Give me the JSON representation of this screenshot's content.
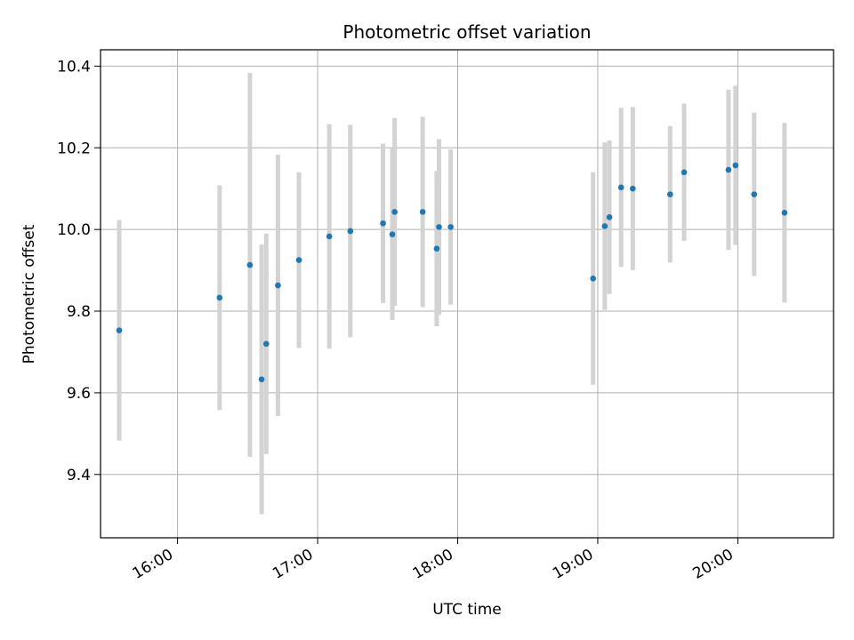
{
  "chart_data": {
    "type": "scatter",
    "title": "Photometric offset variation",
    "xlabel": "UTC time",
    "ylabel": "Photometric offset",
    "x_axis_type": "time",
    "xlim": [
      "15:27",
      "20:41"
    ],
    "ylim": [
      9.245,
      10.44
    ],
    "grid": true,
    "xticks": [
      "16:00",
      "17:00",
      "18:00",
      "19:00",
      "20:00"
    ],
    "yticks": [
      "9.4",
      "9.6",
      "9.8",
      "10.0",
      "10.2",
      "10.4"
    ],
    "point_color": "#1f77b4",
    "errorbar_color": "#d3d3d3",
    "points": [
      {
        "x": "15:35",
        "y": 9.753,
        "err": 0.27
      },
      {
        "x": "16:18",
        "y": 9.833,
        "err": 0.275
      },
      {
        "x": "16:31",
        "y": 9.913,
        "err": 0.47
      },
      {
        "x": "16:36",
        "y": 9.633,
        "err": 0.33
      },
      {
        "x": "16:38",
        "y": 9.72,
        "err": 0.27
      },
      {
        "x": "16:43",
        "y": 9.863,
        "err": 0.32
      },
      {
        "x": "16:52",
        "y": 9.925,
        "err": 0.215
      },
      {
        "x": "17:05",
        "y": 9.983,
        "err": 0.275
      },
      {
        "x": "17:14",
        "y": 9.996,
        "err": 0.26
      },
      {
        "x": "17:28",
        "y": 10.015,
        "err": 0.195
      },
      {
        "x": "17:32",
        "y": 9.988,
        "err": 0.21
      },
      {
        "x": "17:33",
        "y": 10.043,
        "err": 0.23
      },
      {
        "x": "17:45",
        "y": 10.043,
        "err": 0.233
      },
      {
        "x": "17:51",
        "y": 9.953,
        "err": 0.19
      },
      {
        "x": "17:52",
        "y": 10.006,
        "err": 0.215
      },
      {
        "x": "17:57",
        "y": 10.006,
        "err": 0.19
      },
      {
        "x": "18:58",
        "y": 9.88,
        "err": 0.26
      },
      {
        "x": "19:03",
        "y": 10.008,
        "err": 0.205
      },
      {
        "x": "19:05",
        "y": 10.03,
        "err": 0.188
      },
      {
        "x": "19:10",
        "y": 10.103,
        "err": 0.195
      },
      {
        "x": "19:15",
        "y": 10.1,
        "err": 0.2
      },
      {
        "x": "19:31",
        "y": 10.086,
        "err": 0.167
      },
      {
        "x": "19:37",
        "y": 10.14,
        "err": 0.168
      },
      {
        "x": "19:56",
        "y": 10.146,
        "err": 0.196
      },
      {
        "x": "19:59",
        "y": 10.157,
        "err": 0.195
      },
      {
        "x": "20:07",
        "y": 10.086,
        "err": 0.2
      },
      {
        "x": "20:20",
        "y": 10.041,
        "err": 0.22
      }
    ]
  }
}
